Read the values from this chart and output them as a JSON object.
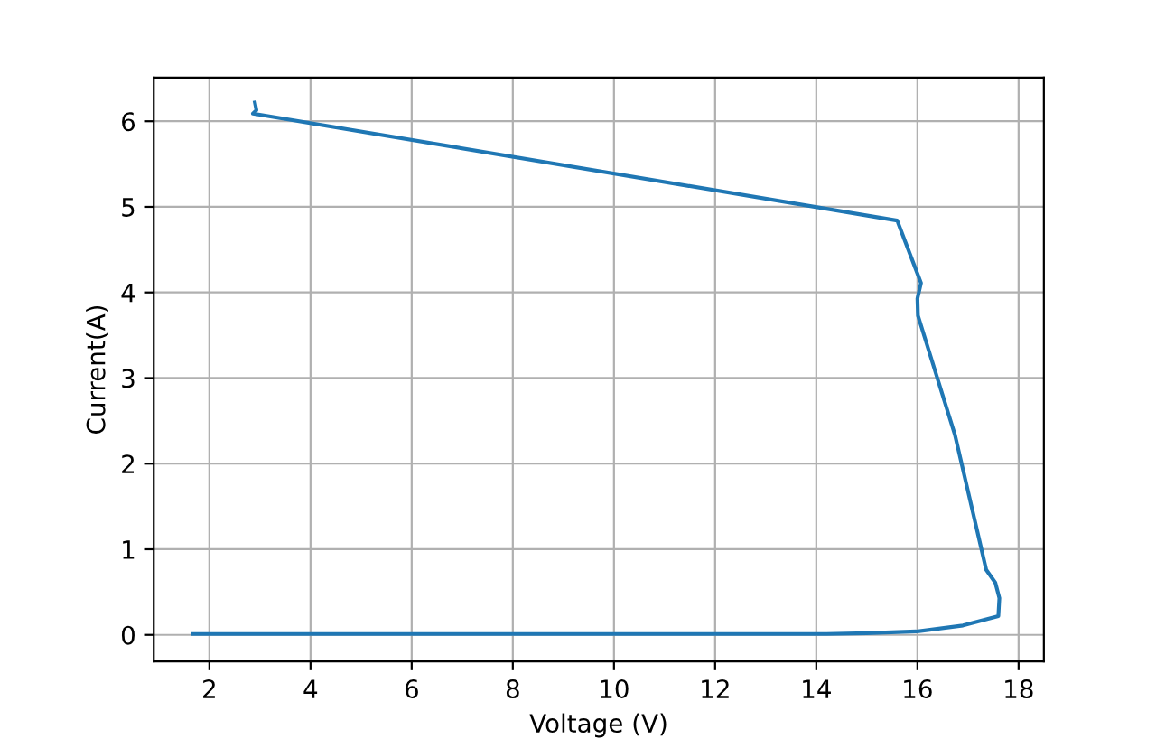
{
  "chart_data": {
    "type": "line",
    "xlabel": "Voltage (V)",
    "ylabel": "Current(A)",
    "series": [
      {
        "color": "#1f77b4",
        "x": [
          1.68,
          6,
          10,
          14.2,
          15.0,
          15.98,
          16.9,
          17.6,
          17.62,
          17.54,
          17.36,
          16.74,
          16.01,
          16.0,
          16.07,
          15.6,
          2.86,
          2.93,
          2.9
        ],
        "values": [
          0.01,
          0.01,
          0.01,
          0.01,
          0.02,
          0.04,
          0.11,
          0.22,
          0.43,
          0.61,
          0.76,
          2.34,
          3.73,
          3.93,
          4.11,
          4.84,
          6.09,
          6.13,
          6.22
        ]
      }
    ],
    "xlim": [
      0.9,
      18.5
    ],
    "ylim": [
      -0.31,
      6.51
    ],
    "xticks": [
      2,
      4,
      6,
      8,
      10,
      12,
      14,
      16,
      18
    ],
    "yticks": [
      0,
      1,
      2,
      3,
      4,
      5,
      6
    ],
    "grid": true
  }
}
